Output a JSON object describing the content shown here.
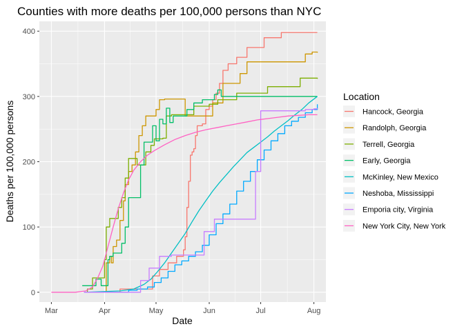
{
  "chart_data": {
    "type": "line",
    "title": "Counties with more deaths per 100,000 persons than NYC",
    "xlabel": "Date",
    "ylabel": "Deaths per 100,000 persons",
    "x_ticks": [
      {
        "label": "Mar",
        "day": 0
      },
      {
        "label": "Apr",
        "day": 31
      },
      {
        "label": "May",
        "day": 61
      },
      {
        "label": "Jun",
        "day": 92
      },
      {
        "label": "Jul",
        "day": 122
      },
      {
        "label": "Aug",
        "day": 153
      }
    ],
    "xlim_days": [
      -7,
      160
    ],
    "x_origin_date": "Mar 1",
    "y_ticks": [
      0,
      100,
      200,
      300,
      400
    ],
    "ylim": [
      -15,
      415
    ],
    "grid": true,
    "legend": {
      "title": "Location",
      "position": "right"
    },
    "series": [
      {
        "name": "Hancock, Georgia",
        "color": "#F8766D",
        "step": true,
        "points": [
          [
            19,
            0
          ],
          [
            37,
            0
          ],
          [
            40,
            5
          ],
          [
            47,
            5
          ],
          [
            56,
            5
          ],
          [
            59,
            25
          ],
          [
            61,
            25
          ],
          [
            63,
            35
          ],
          [
            66,
            35
          ],
          [
            68,
            45
          ],
          [
            71,
            45
          ],
          [
            73,
            55
          ],
          [
            75,
            55
          ],
          [
            77,
            65
          ],
          [
            78,
            85
          ],
          [
            79,
            130
          ],
          [
            80,
            170
          ],
          [
            81,
            210
          ],
          [
            82,
            215
          ],
          [
            83,
            220
          ],
          [
            84,
            240
          ],
          [
            85,
            255
          ],
          [
            88,
            258
          ],
          [
            90,
            280
          ],
          [
            92,
            285
          ],
          [
            94,
            295
          ],
          [
            96,
            305
          ],
          [
            98,
            320
          ],
          [
            100,
            340
          ],
          [
            103,
            350
          ],
          [
            108,
            360
          ],
          [
            114,
            375
          ],
          [
            121,
            375
          ],
          [
            124,
            390
          ],
          [
            130,
            390
          ],
          [
            134,
            398
          ],
          [
            143,
            398
          ],
          [
            152,
            398
          ],
          [
            155,
            398
          ]
        ]
      },
      {
        "name": "Randolph, Georgia",
        "color": "#CD9600",
        "step": true,
        "points": [
          [
            19,
            0
          ],
          [
            31,
            0
          ],
          [
            32,
            45
          ],
          [
            34,
            55
          ],
          [
            35,
            45
          ],
          [
            36,
            70
          ],
          [
            38,
            80
          ],
          [
            40,
            110
          ],
          [
            42,
            140
          ],
          [
            43,
            165
          ],
          [
            45,
            185
          ],
          [
            47,
            195
          ],
          [
            49,
            215
          ],
          [
            51,
            240
          ],
          [
            53,
            255
          ],
          [
            55,
            270
          ],
          [
            57,
            270
          ],
          [
            61,
            280
          ],
          [
            63,
            295
          ],
          [
            66,
            296
          ],
          [
            74,
            296
          ],
          [
            78,
            270
          ],
          [
            82,
            270
          ],
          [
            90,
            270
          ],
          [
            94,
            290
          ],
          [
            100,
            320
          ],
          [
            110,
            335
          ],
          [
            114,
            353
          ],
          [
            124,
            353
          ],
          [
            140,
            353
          ],
          [
            148,
            365
          ],
          [
            152,
            368
          ],
          [
            155,
            367
          ]
        ]
      },
      {
        "name": "Terrell, Georgia",
        "color": "#7CAE00",
        "step": true,
        "points": [
          [
            19,
            0
          ],
          [
            21,
            5
          ],
          [
            24,
            22
          ],
          [
            29,
            22
          ],
          [
            31,
            50
          ],
          [
            32,
            100
          ],
          [
            34,
            113
          ],
          [
            37,
            113
          ],
          [
            39,
            130
          ],
          [
            41,
            145
          ],
          [
            43,
            175
          ],
          [
            45,
            205
          ],
          [
            48,
            205
          ],
          [
            50,
            195
          ],
          [
            52,
            195
          ],
          [
            55,
            215
          ],
          [
            58,
            225
          ],
          [
            60,
            235
          ],
          [
            62,
            235
          ],
          [
            65,
            236
          ],
          [
            67,
            270
          ],
          [
            70,
            272
          ],
          [
            74,
            272
          ],
          [
            80,
            272
          ],
          [
            83,
            285
          ],
          [
            86,
            285
          ],
          [
            92,
            288
          ],
          [
            97,
            295
          ],
          [
            106,
            295
          ],
          [
            108,
            305
          ],
          [
            124,
            305
          ],
          [
            126,
            315
          ],
          [
            140,
            315
          ],
          [
            145,
            328
          ],
          [
            155,
            327
          ]
        ]
      },
      {
        "name": "Early, Georgia",
        "color": "#00BE67",
        "step": true,
        "points": [
          [
            18,
            10
          ],
          [
            25,
            10
          ],
          [
            26,
            20
          ],
          [
            29,
            10
          ],
          [
            32,
            10
          ],
          [
            33,
            50
          ],
          [
            34,
            55
          ],
          [
            36,
            60
          ],
          [
            39,
            60
          ],
          [
            41,
            75
          ],
          [
            43,
            100
          ],
          [
            45,
            145
          ],
          [
            48,
            145
          ],
          [
            52,
            195
          ],
          [
            54,
            230
          ],
          [
            57,
            230
          ],
          [
            59,
            255
          ],
          [
            61,
            232
          ],
          [
            63,
            265
          ],
          [
            65,
            258
          ],
          [
            67,
            282
          ],
          [
            69,
            260
          ],
          [
            71,
            270
          ],
          [
            74,
            270
          ],
          [
            79,
            280
          ],
          [
            83,
            290
          ],
          [
            88,
            295
          ],
          [
            93,
            295
          ],
          [
            95,
            303
          ],
          [
            97,
            310
          ],
          [
            99,
            300
          ],
          [
            103,
            300
          ],
          [
            110,
            300
          ],
          [
            125,
            300
          ],
          [
            155,
            300
          ]
        ]
      },
      {
        "name": "McKinley, New Mexico",
        "color": "#00BFC4",
        "step": false,
        "points": [
          [
            19,
            0
          ],
          [
            40,
            2
          ],
          [
            48,
            5
          ],
          [
            54,
            12
          ],
          [
            58,
            20
          ],
          [
            62,
            32
          ],
          [
            66,
            45
          ],
          [
            70,
            60
          ],
          [
            74,
            75
          ],
          [
            78,
            90
          ],
          [
            82,
            108
          ],
          [
            86,
            125
          ],
          [
            90,
            140
          ],
          [
            94,
            155
          ],
          [
            98,
            168
          ],
          [
            102,
            180
          ],
          [
            106,
            192
          ],
          [
            110,
            203
          ],
          [
            114,
            214
          ],
          [
            118,
            222
          ],
          [
            122,
            230
          ],
          [
            126,
            238
          ],
          [
            130,
            247
          ],
          [
            134,
            255
          ],
          [
            138,
            263
          ],
          [
            142,
            272
          ],
          [
            146,
            280
          ],
          [
            150,
            290
          ],
          [
            155,
            300
          ]
        ]
      },
      {
        "name": "Neshoba, Mississippi",
        "color": "#00A9FF",
        "step": true,
        "points": [
          [
            19,
            0
          ],
          [
            40,
            0
          ],
          [
            45,
            3
          ],
          [
            50,
            5
          ],
          [
            56,
            8
          ],
          [
            60,
            15
          ],
          [
            64,
            22
          ],
          [
            68,
            32
          ],
          [
            72,
            42
          ],
          [
            76,
            48
          ],
          [
            80,
            55
          ],
          [
            84,
            62
          ],
          [
            88,
            72
          ],
          [
            92,
            88
          ],
          [
            96,
            105
          ],
          [
            100,
            120
          ],
          [
            104,
            135
          ],
          [
            108,
            155
          ],
          [
            112,
            170
          ],
          [
            116,
            185
          ],
          [
            120,
            203
          ],
          [
            124,
            218
          ],
          [
            128,
            232
          ],
          [
            132,
            243
          ],
          [
            136,
            255
          ],
          [
            140,
            262
          ],
          [
            144,
            268
          ],
          [
            148,
            275
          ],
          [
            152,
            280
          ],
          [
            155,
            288
          ]
        ]
      },
      {
        "name": "Emporia city, Virginia",
        "color": "#C77CFF",
        "step": true,
        "points": [
          [
            19,
            0
          ],
          [
            50,
            0
          ],
          [
            52,
            18
          ],
          [
            56,
            18
          ],
          [
            57,
            37
          ],
          [
            62,
            37
          ],
          [
            63,
            55
          ],
          [
            69,
            55
          ],
          [
            70,
            57
          ],
          [
            76,
            57
          ],
          [
            86,
            57
          ],
          [
            88,
            57
          ],
          [
            89,
            93
          ],
          [
            94,
            93
          ],
          [
            95,
            112
          ],
          [
            108,
            112
          ],
          [
            118,
            112
          ],
          [
            119,
            185
          ],
          [
            121,
            185
          ],
          [
            122,
            278
          ],
          [
            130,
            278
          ],
          [
            140,
            278
          ],
          [
            148,
            280
          ],
          [
            153,
            281
          ],
          [
            155,
            282
          ]
        ]
      },
      {
        "name": "New York City, New York",
        "color": "#FF61C3",
        "step": false,
        "points": [
          [
            0,
            0
          ],
          [
            14,
            0
          ],
          [
            20,
            2
          ],
          [
            24,
            8
          ],
          [
            27,
            22
          ],
          [
            30,
            40
          ],
          [
            33,
            70
          ],
          [
            36,
            100
          ],
          [
            39,
            128
          ],
          [
            42,
            152
          ],
          [
            45,
            172
          ],
          [
            48,
            187
          ],
          [
            52,
            200
          ],
          [
            56,
            210
          ],
          [
            60,
            217
          ],
          [
            66,
            226
          ],
          [
            72,
            234
          ],
          [
            78,
            240
          ],
          [
            84,
            245
          ],
          [
            90,
            249
          ],
          [
            96,
            252
          ],
          [
            102,
            255
          ],
          [
            108,
            258
          ],
          [
            114,
            261
          ],
          [
            120,
            264
          ],
          [
            126,
            266
          ],
          [
            132,
            268
          ],
          [
            138,
            270
          ],
          [
            144,
            271
          ],
          [
            150,
            272
          ],
          [
            155,
            272
          ]
        ]
      }
    ]
  }
}
